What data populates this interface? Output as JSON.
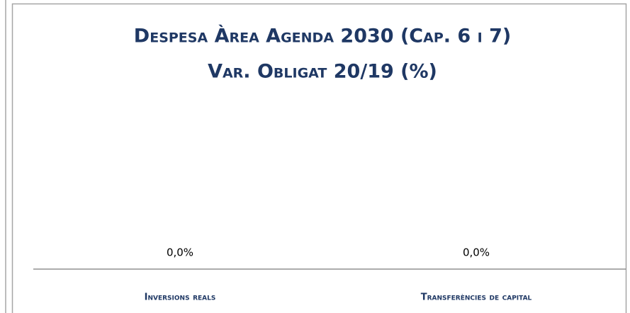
{
  "chart_data": {
    "type": "bar",
    "title": [
      "Despesa Àrea Agenda 2030 (Cap. 6 i 7)",
      "Var. Obligat 20/19 (%)"
    ],
    "categories": [
      "Inversions reals",
      "Transferències de capital"
    ],
    "values": [
      0,
      0
    ],
    "value_labels": [
      "0,0%",
      "0,0%"
    ],
    "color": "#1f3864"
  }
}
